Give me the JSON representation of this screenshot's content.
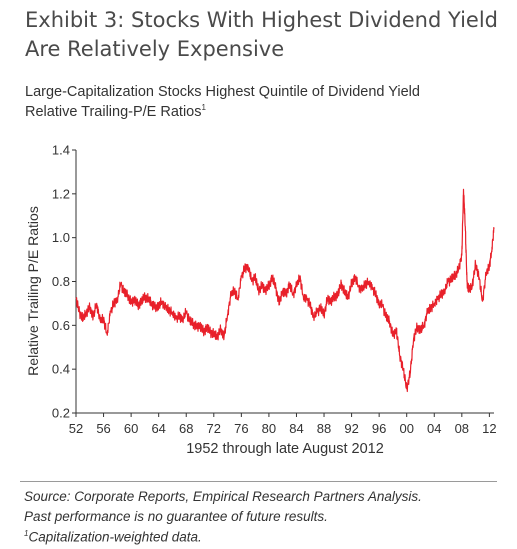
{
  "header": {
    "title": "Exhibit 3: Stocks With Highest Dividend Yield Are Relatively Expensive",
    "subtitle_line1": "Large-Capitalization Stocks Highest Quintile of Dividend Yield",
    "subtitle_line2": "Relative Trailing-P/E Ratios",
    "subtitle_footnote_mark": "1"
  },
  "chart_data": {
    "type": "line",
    "title": "Exhibit 3: Stocks With Highest Dividend Yield Are Relatively Expensive",
    "xlabel": "1952 through late August 2012",
    "ylabel": "Relative Trailing P/E Ratios",
    "ylim": [
      0.2,
      1.4
    ],
    "xlim": [
      1952.0,
      2012.67
    ],
    "y_ticks": [
      0.2,
      0.4,
      0.6,
      0.8,
      1.0,
      1.2,
      1.4
    ],
    "y_tick_labels": [
      "0.2",
      "0.4",
      "0.6",
      "0.8",
      "1.0",
      "1.2",
      "1.4"
    ],
    "x_ticks": [
      1952,
      1956,
      1960,
      1964,
      1968,
      1972,
      1976,
      1980,
      1984,
      1988,
      1992,
      1996,
      2000,
      2004,
      2008,
      2012
    ],
    "x_tick_labels": [
      "52",
      "56",
      "60",
      "64",
      "68",
      "72",
      "76",
      "80",
      "84",
      "88",
      "92",
      "96",
      "00",
      "04",
      "08",
      "12"
    ],
    "grid": false,
    "legend": "none",
    "line_color": "#e8202a",
    "series": [
      {
        "x": [
          1952.0,
          1952.5,
          1953.0,
          1953.5,
          1954.0,
          1954.5,
          1955.0,
          1955.5,
          1956.0,
          1956.5,
          1957.0,
          1957.5,
          1958.0,
          1958.5,
          1959.0,
          1959.5,
          1960.0,
          1960.5,
          1961.0,
          1961.5,
          1962.0,
          1962.5,
          1963.0,
          1963.5,
          1964.0,
          1964.5,
          1965.0,
          1965.5,
          1966.0,
          1966.5,
          1967.0,
          1967.5,
          1968.0,
          1968.5,
          1969.0,
          1969.5,
          1970.0,
          1970.5,
          1971.0,
          1971.5,
          1972.0,
          1972.5,
          1973.0,
          1973.5,
          1974.0,
          1974.5,
          1975.0,
          1975.5,
          1976.0,
          1976.5,
          1977.0,
          1977.5,
          1978.0,
          1978.5,
          1979.0,
          1979.5,
          1980.0,
          1980.5,
          1981.0,
          1981.5,
          1982.0,
          1982.5,
          1983.0,
          1983.5,
          1984.0,
          1984.5,
          1985.0,
          1985.5,
          1986.0,
          1986.5,
          1987.0,
          1987.5,
          1988.0,
          1988.5,
          1989.0,
          1989.5,
          1990.0,
          1990.5,
          1991.0,
          1991.5,
          1992.0,
          1992.5,
          1993.0,
          1993.5,
          1994.0,
          1994.5,
          1995.0,
          1995.5,
          1996.0,
          1996.5,
          1997.0,
          1997.5,
          1998.0,
          1998.5,
          1999.0,
          1999.5,
          2000.0,
          2000.5,
          2001.0,
          2001.5,
          2002.0,
          2002.5,
          2003.0,
          2003.5,
          2004.0,
          2004.5,
          2005.0,
          2005.5,
          2006.0,
          2006.5,
          2007.0,
          2007.5,
          2008.0,
          2008.25,
          2008.5,
          2008.75,
          2009.0,
          2009.5,
          2010.0,
          2010.5,
          2011.0,
          2011.5,
          2012.0,
          2012.33,
          2012.67
        ],
        "values": [
          0.72,
          0.66,
          0.63,
          0.66,
          0.68,
          0.64,
          0.7,
          0.62,
          0.63,
          0.56,
          0.66,
          0.7,
          0.72,
          0.79,
          0.75,
          0.74,
          0.7,
          0.72,
          0.69,
          0.71,
          0.73,
          0.72,
          0.7,
          0.68,
          0.69,
          0.71,
          0.68,
          0.67,
          0.66,
          0.63,
          0.64,
          0.63,
          0.66,
          0.62,
          0.61,
          0.59,
          0.6,
          0.57,
          0.59,
          0.57,
          0.56,
          0.55,
          0.58,
          0.55,
          0.65,
          0.74,
          0.76,
          0.72,
          0.82,
          0.86,
          0.87,
          0.8,
          0.82,
          0.76,
          0.78,
          0.76,
          0.78,
          0.82,
          0.77,
          0.7,
          0.76,
          0.74,
          0.79,
          0.74,
          0.78,
          0.82,
          0.73,
          0.72,
          0.69,
          0.64,
          0.66,
          0.68,
          0.65,
          0.72,
          0.71,
          0.73,
          0.74,
          0.79,
          0.75,
          0.73,
          0.79,
          0.82,
          0.78,
          0.76,
          0.79,
          0.8,
          0.77,
          0.74,
          0.7,
          0.69,
          0.64,
          0.62,
          0.55,
          0.58,
          0.46,
          0.4,
          0.31,
          0.38,
          0.54,
          0.59,
          0.58,
          0.6,
          0.66,
          0.68,
          0.7,
          0.72,
          0.74,
          0.76,
          0.8,
          0.81,
          0.83,
          0.85,
          0.92,
          1.22,
          1.05,
          0.8,
          0.76,
          0.78,
          0.88,
          0.82,
          0.71,
          0.83,
          0.87,
          0.94,
          1.04
        ]
      }
    ]
  },
  "footer": {
    "note1": "Source: Corporate Reports, Empirical Research Partners Analysis.",
    "note2": "Past performance is no guarantee of future results.",
    "note3": "Capitalization-weighted data.",
    "note3_mark": "1"
  }
}
